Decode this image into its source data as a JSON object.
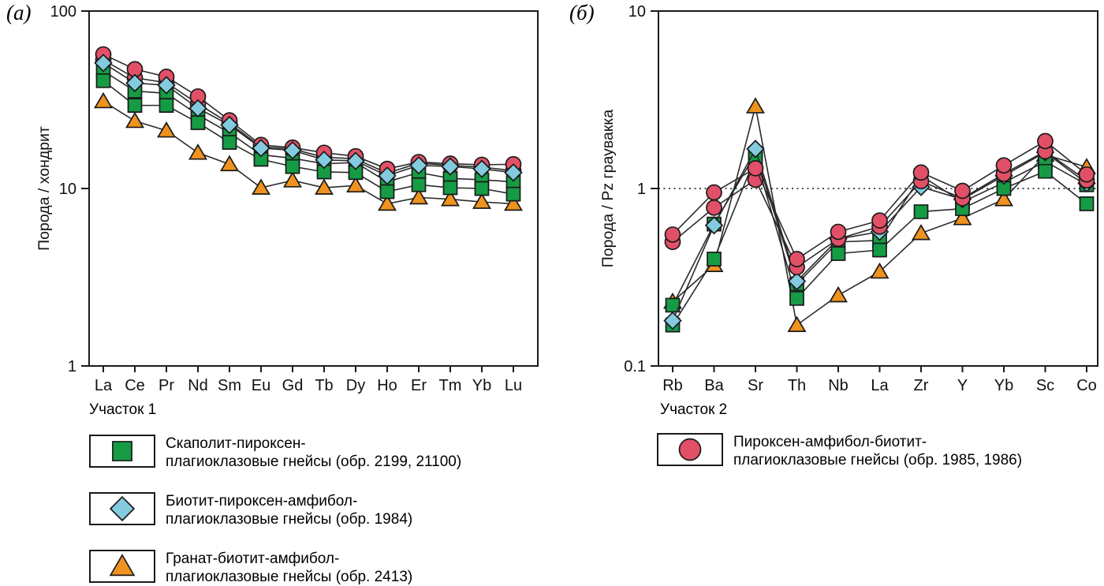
{
  "labels": {
    "panel_a": "(а)",
    "panel_b": "(б)"
  },
  "colors": {
    "axis": "#1a1a1a",
    "series_line": "#2b2b2b",
    "marker_green": "#169b45",
    "marker_blue": "#84cbe0",
    "marker_orange": "#f0921e",
    "marker_pink": "#e25068"
  },
  "chart_data": [
    {
      "type": "line",
      "panel": "(а)",
      "title": "",
      "xlabel": "",
      "ylabel": "Порода / хондрит",
      "subtitle": "Участок 1",
      "y_scale": "log",
      "y_min": 1,
      "y_max": 100,
      "y_ticks": [
        {
          "value": 100,
          "label": "100"
        },
        {
          "value": 10,
          "label": "10"
        },
        {
          "value": 1,
          "label": "1"
        }
      ],
      "reference_line": null,
      "x_labels": [
        "La",
        "Ce",
        "Pr",
        "Nd",
        "Sm",
        "Eu",
        "Gd",
        "Tb",
        "Dy",
        "Ho",
        "Er",
        "Tm",
        "Yb",
        "Lu"
      ],
      "series": [
        {
          "sample": "обр. 2413",
          "group": "Гранат-биотит-амфибол-плагиоклазовые гнейсы",
          "marker": "triangle",
          "color": "#f0921e",
          "values": [
            31,
            24,
            21.2,
            15.9,
            13.7,
            10.1,
            11.1,
            10.1,
            10.4,
            8.2,
            8.9,
            8.7,
            8.4,
            8.2
          ]
        },
        {
          "sample": "обр. 2199",
          "group": "Скаполит-пироксен-плагиоклазовые гнейсы",
          "marker": "square",
          "color": "#169b45",
          "values": [
            46,
            35.4,
            34.4,
            26.0,
            20.6,
            15.5,
            14.8,
            13.8,
            14.0,
            10.9,
            12.3,
            11.4,
            11.2,
            10.9
          ]
        },
        {
          "sample": "обр. 21100",
          "group": "Скаполит-пироксен-плагиоклазовые гнейсы",
          "marker": "square",
          "color": "#169b45",
          "values": [
            40.5,
            29.4,
            29.4,
            23.5,
            18.2,
            14.6,
            13.3,
            12.4,
            12.3,
            9.6,
            10.5,
            10.1,
            10.0,
            9.3
          ]
        },
        {
          "sample": "обр. 1986",
          "group": "Пироксен-амфибол-биотит-плагиоклазовые гнейсы",
          "marker": "circle",
          "color": "#e25068",
          "values": [
            53,
            42,
            39.5,
            30,
            23.3,
            17.2,
            16.7,
            15.0,
            14.7,
            12.2,
            13.9,
            13.5,
            13.2,
            12.6
          ]
        },
        {
          "sample": "обр. 1985",
          "group": "Пироксен-амфибол-биотит-плагиоклазовые гнейсы",
          "marker": "circle",
          "color": "#e25068",
          "values": [
            57,
            47,
            42.6,
            33,
            24.2,
            17.6,
            17.0,
            15.9,
            15.2,
            12.9,
            14.1,
            13.8,
            13.6,
            13.7
          ]
        },
        {
          "sample": "обр. 1984",
          "group": "Биотит-пироксен-амфибол-плагиоклазовые гнейсы",
          "marker": "diamond",
          "color": "#84cbe0",
          "values": [
            51,
            39.3,
            38.2,
            28.3,
            22.8,
            16.9,
            16.4,
            14.5,
            14.3,
            11.8,
            13.5,
            13.3,
            12.9,
            12.3
          ]
        }
      ]
    },
    {
      "type": "line",
      "panel": "(б)",
      "title": "",
      "xlabel": "",
      "ylabel": "Порода / Pz граувакка",
      "subtitle": "Участок 2",
      "y_scale": "log",
      "y_min": 0.1,
      "y_max": 10,
      "y_ticks": [
        {
          "value": 10,
          "label": "10"
        },
        {
          "value": 1,
          "label": "1"
        },
        {
          "value": 0.1,
          "label": "0.1"
        }
      ],
      "reference_line": 1,
      "x_labels": [
        "Rb",
        "Ba",
        "Sr",
        "Th",
        "Nb",
        "La",
        "Zr",
        "Y",
        "Yb",
        "Sc",
        "Co"
      ],
      "series": [
        {
          "sample": "обр. 2413",
          "group": "Гранат-биотит-амфибол-плагиоклазовые гнейсы",
          "marker": "triangle",
          "color": "#f0921e",
          "values": [
            0.23,
            0.37,
            2.9,
            0.17,
            0.25,
            0.34,
            0.56,
            0.68,
            0.87,
            1.55,
            1.32
          ]
        },
        {
          "sample": "обр. 2199",
          "group": "Скаполит-пироксен-плагиоклазовые гнейсы",
          "marker": "square",
          "color": "#169b45",
          "values": [
            0.22,
            0.63,
            1.57,
            0.29,
            0.5,
            0.51,
            1.18,
            0.84,
            1.08,
            1.42,
            1.05
          ]
        },
        {
          "sample": "обр. 21100",
          "group": "Скаполит-пироксен-плагиоклазовые гнейсы",
          "marker": "square",
          "color": "#169b45",
          "values": [
            0.17,
            0.4,
            1.5,
            0.24,
            0.43,
            0.45,
            0.74,
            0.77,
            1.0,
            1.25,
            0.82
          ]
        },
        {
          "sample": "обр. 1984",
          "group": "Биотит-пироксен-амфибол-плагиоклазовые гнейсы",
          "marker": "diamond",
          "color": "#84cbe0",
          "values": [
            0.18,
            0.62,
            1.67,
            0.3,
            0.52,
            0.57,
            1.02,
            0.87,
            1.18,
            1.6,
            1.07
          ]
        },
        {
          "sample": "обр. 1986",
          "group": "Пироксен-амфибол-биотит-плагиоклазовые гнейсы",
          "marker": "circle",
          "color": "#e25068",
          "values": [
            0.5,
            0.78,
            1.12,
            0.36,
            0.52,
            0.61,
            1.1,
            0.88,
            1.21,
            1.62,
            1.11
          ]
        },
        {
          "sample": "обр. 1985",
          "group": "Пироксен-амфибол-биотит-плагиоклазовые гнейсы",
          "marker": "circle",
          "color": "#e25068",
          "values": [
            0.55,
            0.95,
            1.3,
            0.4,
            0.57,
            0.66,
            1.23,
            0.97,
            1.35,
            1.85,
            1.2
          ]
        }
      ]
    }
  ],
  "legends": [
    {
      "section_title": "Участок 1",
      "items": [
        {
          "marker": "square",
          "color": "#169b45",
          "line1": "Скаполит-пироксен-",
          "line2": "плагиоклазовые гнейсы (обр. 2199, 21100)"
        },
        {
          "marker": "diamond",
          "color": "#84cbe0",
          "line1": "Биотит-пироксен-амфибол-",
          "line2": "плагиоклазовые гнейсы (обр. 1984)"
        },
        {
          "marker": "triangle",
          "color": "#f0921e",
          "line1": "Гранат-биотит-амфибол-",
          "line2": "плагиоклазовые гнейсы (обр. 2413)"
        }
      ]
    },
    {
      "section_title": "Участок 2",
      "items": [
        {
          "marker": "circle",
          "color": "#e25068",
          "line1": "Пироксен-амфибол-биотит-",
          "line2": "плагиоклазовые гнейсы (обр. 1985, 1986)"
        }
      ]
    }
  ]
}
